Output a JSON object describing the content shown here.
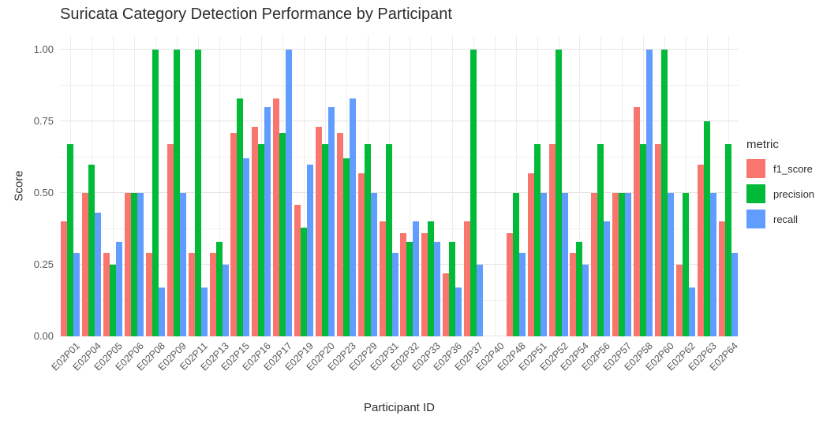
{
  "chart_data": {
    "type": "bar",
    "title": "Suricata Category Detection Performance by Participant",
    "xlabel": "Participant ID",
    "ylabel": "Score",
    "ylim": [
      0,
      1.0
    ],
    "yticks": [
      0,
      0.25,
      0.5,
      0.75,
      1.0
    ],
    "ytick_labels": [
      "0.00",
      "0.25",
      "0.50",
      "0.75",
      "1.00"
    ],
    "yticks_minor": [
      0.125,
      0.375,
      0.625,
      0.875
    ],
    "grid": true,
    "legend_position": "right",
    "legend_title": "metric",
    "categories": [
      "E02P01",
      "E02P04",
      "E02P05",
      "E02P06",
      "E02P08",
      "E02P09",
      "E02P11",
      "E02P13",
      "E02P15",
      "E02P16",
      "E02P17",
      "E02P19",
      "E02P20",
      "E02P23",
      "E02P29",
      "E02P31",
      "E02P32",
      "E02P33",
      "E02P36",
      "E02P37",
      "E02P40",
      "E02P48",
      "E02P51",
      "E02P52",
      "E02P54",
      "E02P56",
      "E02P57",
      "E02P58",
      "E02P60",
      "E02P62",
      "E02P63",
      "E02P64"
    ],
    "series": [
      {
        "name": "f1_score",
        "color": "#F8766D",
        "values": [
          0.4,
          0.5,
          0.29,
          0.5,
          0.29,
          0.67,
          0.29,
          0.29,
          0.71,
          0.73,
          0.83,
          0.46,
          0.73,
          0.71,
          0.57,
          0.4,
          0.36,
          0.36,
          0.22,
          0.4,
          null,
          0.36,
          0.57,
          0.67,
          0.29,
          0.5,
          0.5,
          0.8,
          0.67,
          0.25,
          0.6,
          0.4
        ]
      },
      {
        "name": "precision",
        "color": "#00BA38",
        "values": [
          0.67,
          0.6,
          0.25,
          0.5,
          1.0,
          1.0,
          1.0,
          0.33,
          0.83,
          0.67,
          0.71,
          0.38,
          0.67,
          0.62,
          0.67,
          0.67,
          0.33,
          0.4,
          0.33,
          1.0,
          null,
          0.5,
          0.67,
          1.0,
          0.33,
          0.67,
          0.5,
          0.67,
          1.0,
          0.5,
          0.75,
          0.67
        ]
      },
      {
        "name": "recall",
        "color": "#619CFF",
        "values": [
          0.29,
          0.43,
          0.33,
          0.5,
          0.17,
          0.5,
          0.17,
          0.25,
          0.62,
          0.8,
          1.0,
          0.6,
          0.8,
          0.83,
          0.5,
          0.29,
          0.4,
          0.33,
          0.17,
          0.25,
          null,
          0.29,
          0.5,
          0.5,
          0.25,
          0.4,
          0.5,
          1.0,
          0.5,
          0.17,
          0.5,
          0.29
        ]
      }
    ]
  }
}
